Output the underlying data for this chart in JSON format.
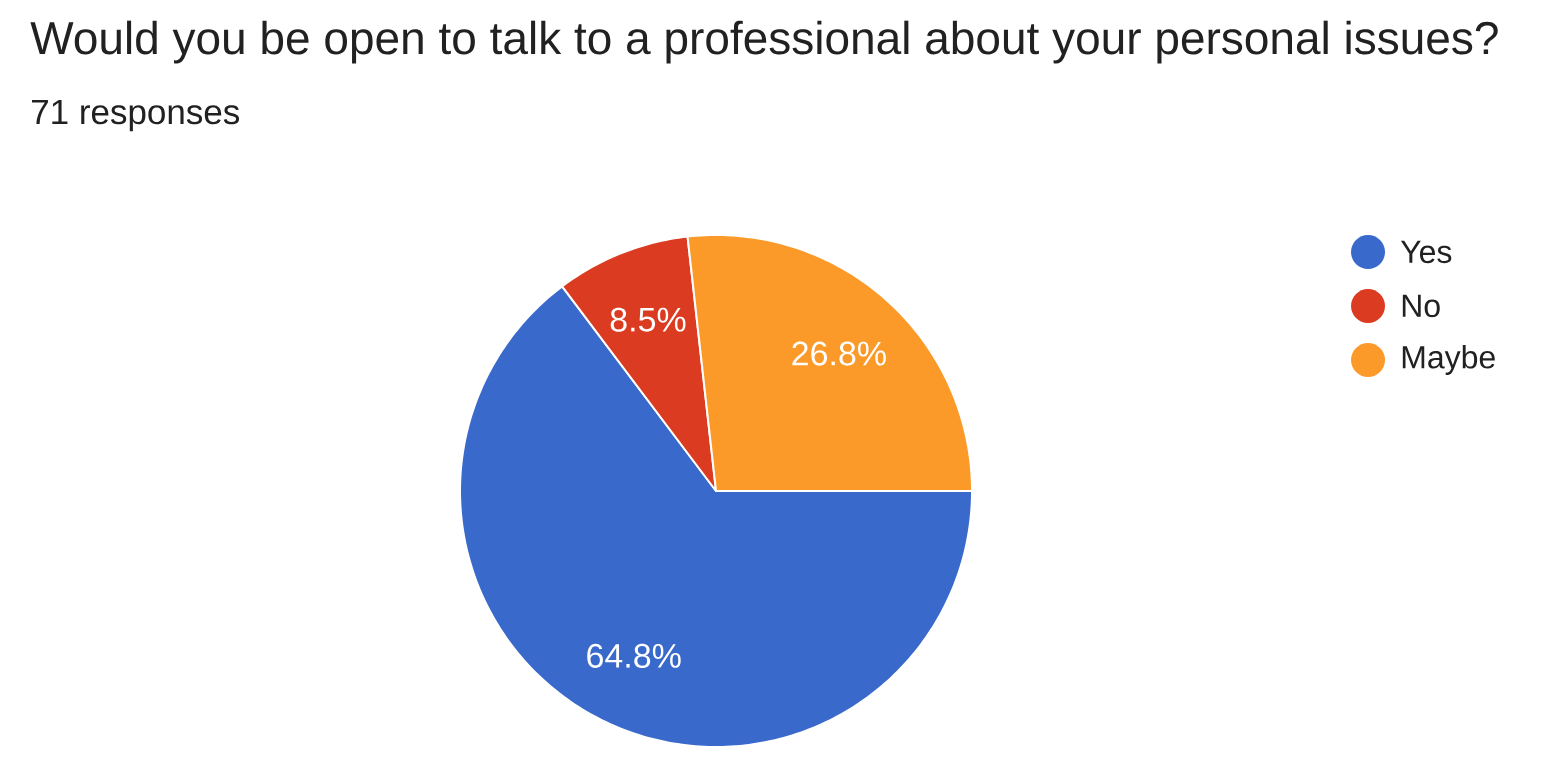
{
  "chart_data": {
    "type": "pie",
    "title": "Would you be open to talk to a professional about your personal issues?",
    "subtitle": "71 responses",
    "categories": [
      "Yes",
      "No",
      "Maybe"
    ],
    "values": [
      64.8,
      8.5,
      26.8
    ],
    "colors": [
      "#3869cb",
      "#db3b21",
      "#fb9a28"
    ],
    "value_labels": [
      "64.8%",
      "8.5%",
      "26.8%"
    ],
    "legend": "right"
  }
}
